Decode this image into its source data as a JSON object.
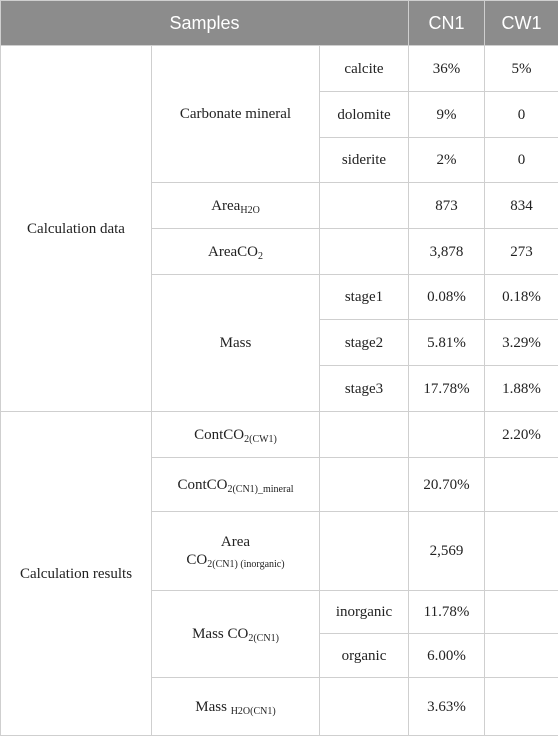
{
  "header": {
    "samples": "Samples",
    "cn1": "CN1",
    "cw1": "CW1"
  },
  "groups": {
    "calc_data": "Calculation data",
    "calc_results": "Calculation results"
  },
  "rows": {
    "carbonate": {
      "label": "Carbonate mineral",
      "calcite": {
        "sub": "calcite",
        "cn1": "36%",
        "cw1": "5%"
      },
      "dolomite": {
        "sub": "dolomite",
        "cn1": "9%",
        "cw1": "0"
      },
      "siderite": {
        "sub": "siderite",
        "cn1": "2%",
        "cw1": "0"
      }
    },
    "area_h2o": {
      "label": "Area",
      "sub": "H2O",
      "cn1": "873",
      "cw1": "834"
    },
    "area_co2": {
      "label": "AreaCO",
      "sub": "2",
      "cn1": "3,878",
      "cw1": "273"
    },
    "mass": {
      "label": "Mass",
      "stage1": {
        "sub": "stage1",
        "cn1": "0.08%",
        "cw1": "0.18%"
      },
      "stage2": {
        "sub": "stage2",
        "cn1": "5.81%",
        "cw1": "3.29%"
      },
      "stage3": {
        "sub": "stage3",
        "cn1": "17.78%",
        "cw1": "1.88%"
      }
    },
    "cont_cw1": {
      "label": "ContCO",
      "sub": "2(CW1)",
      "cn1": "",
      "cw1": "2.20%"
    },
    "cont_cn1": {
      "label": "ContCO",
      "sub": "2(CN1)_mineral",
      "cn1": "20.70%",
      "cw1": ""
    },
    "area_cn1": {
      "label1": "Area",
      "label2": "CO",
      "sub": "2(CN1) (inorganic)",
      "cn1": "2,569",
      "cw1": ""
    },
    "mass_co2": {
      "label": "Mass CO",
      "sub": "2(CN1)",
      "inorganic": {
        "sub": "inorganic",
        "cn1": "11.78%",
        "cw1": ""
      },
      "organic": {
        "sub": "organic",
        "cn1": "6.00%",
        "cw1": ""
      }
    },
    "mass_h2o": {
      "label": "Mass ",
      "sub": "H2O(CN1)",
      "cn1": "3.63%",
      "cw1": ""
    }
  }
}
